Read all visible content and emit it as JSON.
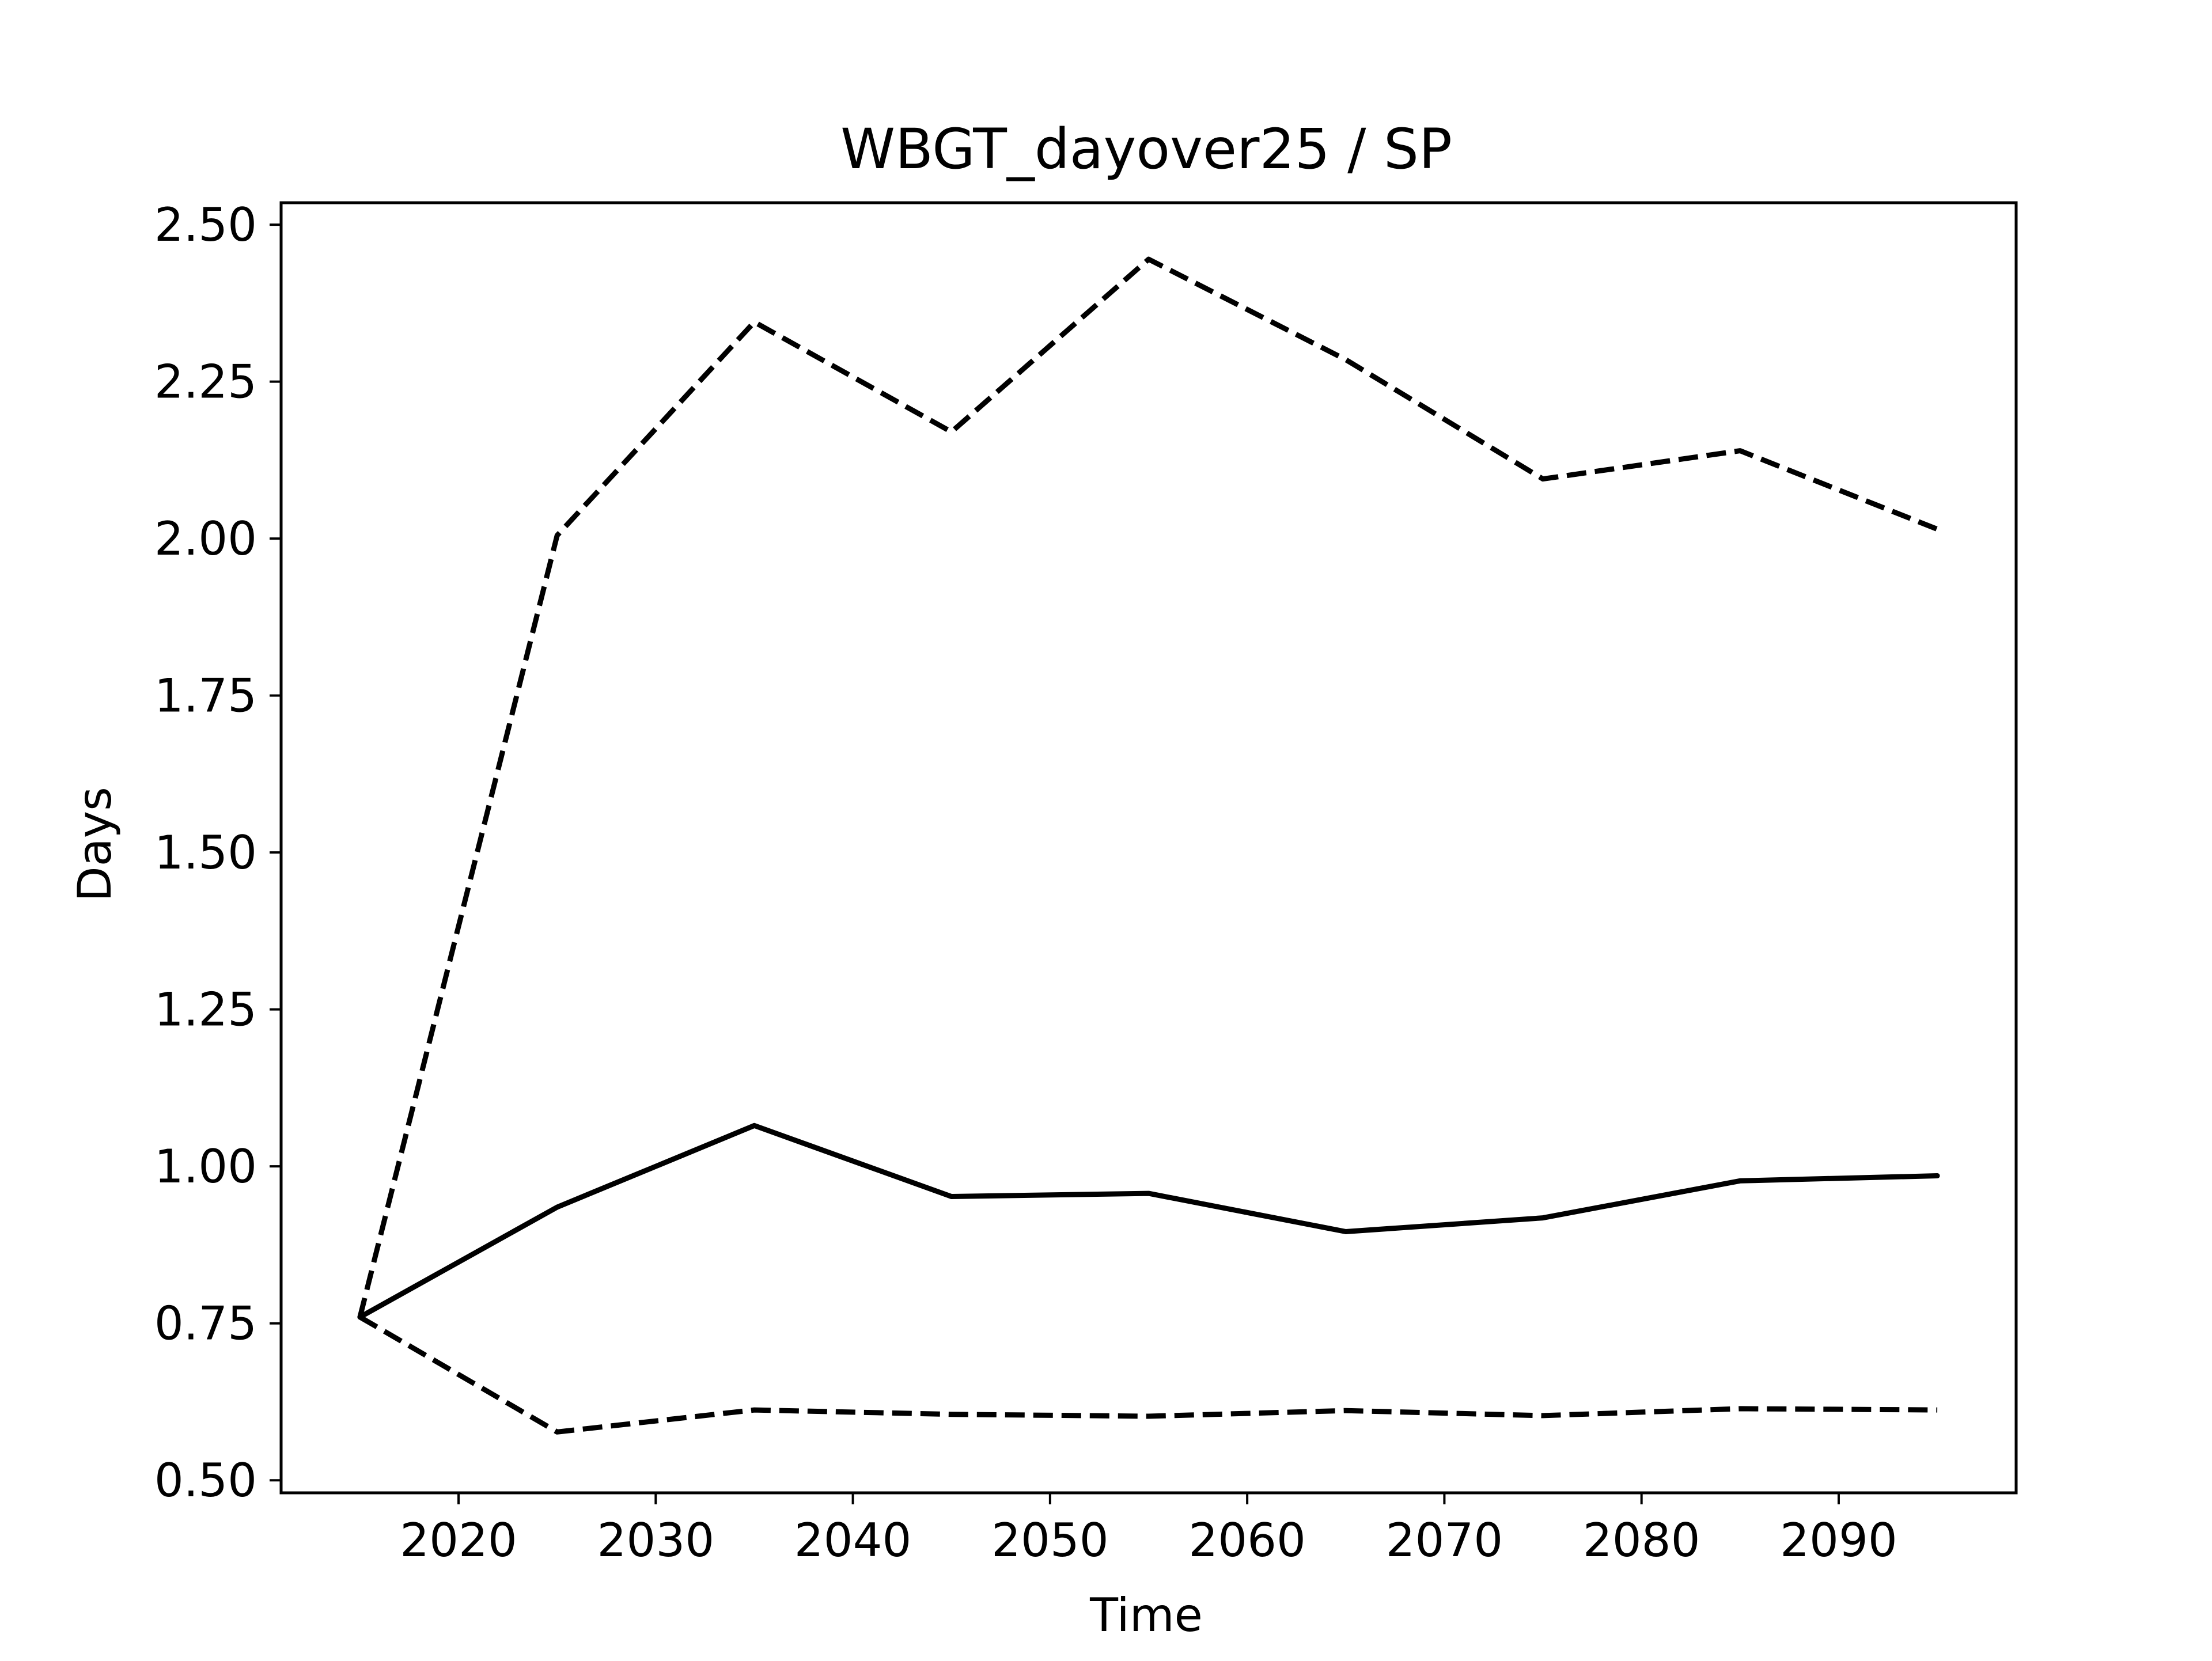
{
  "chart_data": {
    "type": "line",
    "title": "WBGT_dayover25 / SP",
    "xlabel": "Time",
    "ylabel": "Days",
    "xlim": [
      2011,
      2099
    ],
    "ylim": [
      0.48,
      2.535
    ],
    "xticks": [
      "2020",
      "2030",
      "2040",
      "2050",
      "2060",
      "2070",
      "2080",
      "2090"
    ],
    "yticks": [
      "0.50",
      "0.75",
      "1.00",
      "1.25",
      "1.50",
      "1.75",
      "2.00",
      "2.25",
      "2.50"
    ],
    "grid": false,
    "legend": "none",
    "x": [
      2015,
      2025,
      2035,
      2045,
      2055,
      2065,
      2075,
      2085,
      2095
    ],
    "series": [
      {
        "style": "solid",
        "color": "#000000",
        "values": [
          0.76,
          0.935,
          1.065,
          0.952,
          0.957,
          0.896,
          0.918,
          0.977,
          0.985
        ]
      },
      {
        "style": "dashed",
        "color": "#000000",
        "values": [
          0.76,
          2.005,
          2.345,
          2.17,
          2.445,
          2.285,
          2.095,
          2.14,
          2.015
        ]
      },
      {
        "style": "dashed",
        "color": "#000000",
        "values": [
          0.76,
          0.577,
          0.612,
          0.605,
          0.602,
          0.611,
          0.603,
          0.614,
          0.612
        ]
      }
    ]
  }
}
